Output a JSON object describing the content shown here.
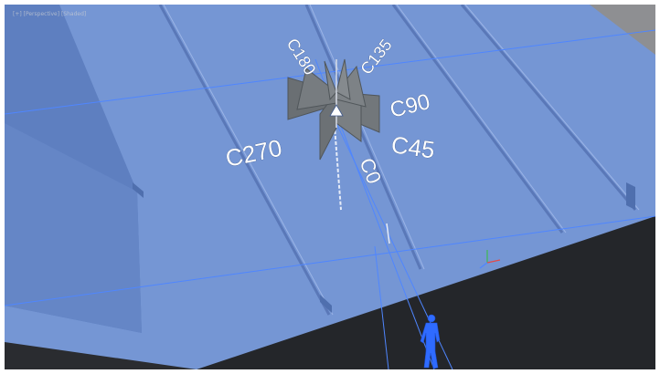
{
  "viewport": {
    "label": "[+] [Perspective] [Shaded]"
  },
  "photometric_web": {
    "angle_labels": {
      "c0": "C0",
      "c45": "C45",
      "c90": "C90",
      "c135": "C135",
      "c180": "C180",
      "c270": "C270"
    }
  },
  "colors": {
    "roof": "#7596d4",
    "roof_shadow": "#5e7fc0",
    "background_dark": "#232529",
    "background_mid": "#3a3d42",
    "web_panels": "#6f7478",
    "selection_blue": "#4f86ff"
  },
  "icons": {
    "human_figure": "human-figure-icon",
    "axis_gizmo": "axis-gizmo-icon"
  }
}
